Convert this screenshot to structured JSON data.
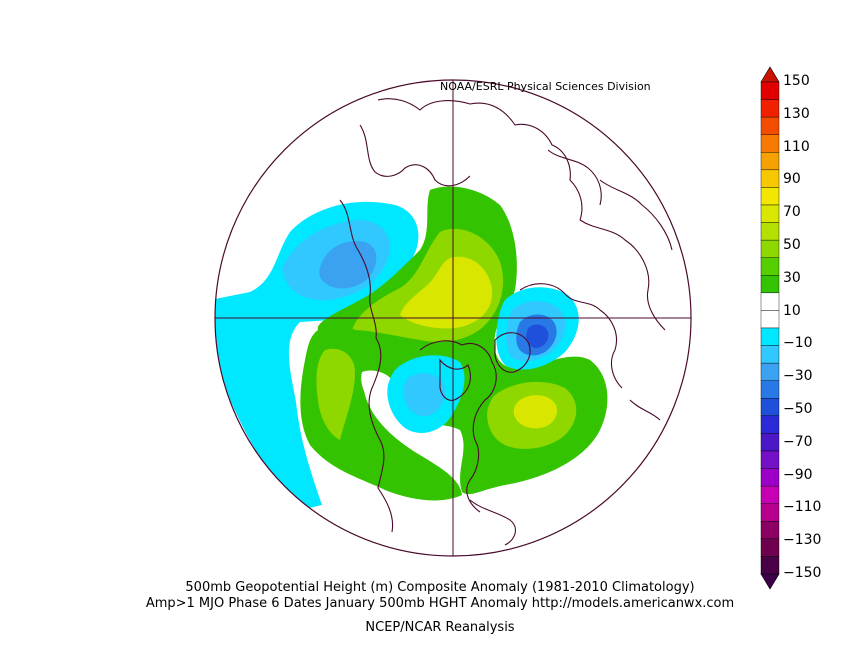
{
  "credit": "NOAA/ESRL Physical Sciences Division",
  "caption_line1": "500mb Geopotential Height (m) Composite Anomaly (1981-2010 Climatology)",
  "caption_line2": "Amp>1 MJO Phase 6 Dates January 500mb HGHT Anomaly http://models.americanwx.com",
  "caption_line3": "NCEP/NCAR Reanalysis",
  "colorbar": {
    "labels": [
      "150",
      "130",
      "110",
      "90",
      "70",
      "50",
      "30",
      "10",
      "−10",
      "−30",
      "−50",
      "−70",
      "−90",
      "−110",
      "−130",
      "−150"
    ],
    "colors": [
      "#e00000",
      "#f02000",
      "#f54d00",
      "#f77a00",
      "#f5a100",
      "#f7c800",
      "#f3e600",
      "#d8e600",
      "#b4e000",
      "#8ed800",
      "#55cf00",
      "#34c300",
      "#ffffff",
      "#ffffff",
      "#00e8ff",
      "#30c8ff",
      "#3aa2f0",
      "#2878e6",
      "#1e50dc",
      "#2a2ad8",
      "#4b18c8",
      "#7410c8",
      "#9c00c8",
      "#c800b4",
      "#b4008c",
      "#8c0064",
      "#6e004e",
      "#4a0046"
    ],
    "top_color": "#c81400",
    "bottom_color": "#3c0046"
  },
  "colors": {
    "land_outline": "#4a0a2c",
    "grid": "#4a0a2c",
    "cyan": "#00e8ff",
    "light_blue": "#30c8ff",
    "mid_blue": "#2878e6",
    "dark_blue": "#1e50dc",
    "green": "#34c300",
    "light_green": "#8ed800",
    "yellow_green": "#d8e600",
    "yellow": "#f3e600"
  }
}
